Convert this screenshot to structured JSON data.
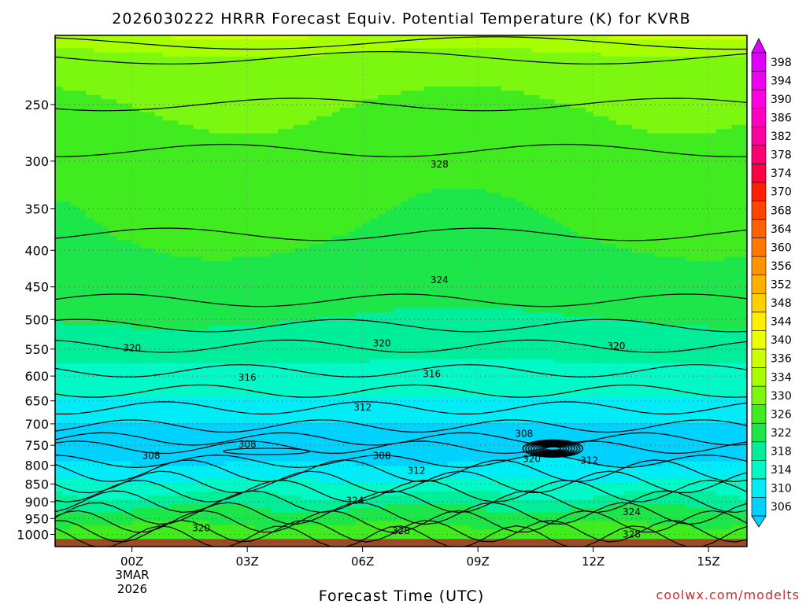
{
  "chart_data": {
    "type": "heatmap",
    "title": "2026030222 HRRR Forecast Equiv. Potential Temperature (K) for KVRB",
    "xlabel": "Forecast Time (UTC)",
    "ylabel": "",
    "x_ticks": [
      "00Z",
      "03Z",
      "06Z",
      "09Z",
      "12Z",
      "15Z"
    ],
    "x_date_label": [
      "3MAR",
      "2026"
    ],
    "x_range_hours": [
      -2,
      16
    ],
    "y_ticks": [
      250,
      300,
      350,
      400,
      450,
      500,
      550,
      600,
      650,
      700,
      750,
      800,
      850,
      900,
      950,
      1000
    ],
    "y_range_hpa": [
      200,
      1040
    ],
    "y_scale": "log pressure (inverted)",
    "grid": true,
    "colorbar": {
      "levels": [
        306,
        310,
        314,
        318,
        322,
        326,
        330,
        334,
        336,
        340,
        344,
        348,
        352,
        356,
        360,
        364,
        368,
        370,
        374,
        378,
        382,
        386,
        390,
        394,
        398
      ],
      "colors": [
        "#00d2ff",
        "#00ecf6",
        "#00f9c6",
        "#00ee9a",
        "#1ce64a",
        "#40eb20",
        "#7cf710",
        "#a8ff00",
        "#ccff00",
        "#eeff00",
        "#ffee00",
        "#ffd000",
        "#ffb000",
        "#ff9400",
        "#ff7800",
        "#ff6000",
        "#ff4400",
        "#ff2000",
        "#ff0040",
        "#ff0070",
        "#ff00a0",
        "#ff00c0",
        "#ff00e0",
        "#f000f0",
        "#e000ff"
      ]
    },
    "contour_labels": [
      {
        "hour": 0,
        "p": 548,
        "text": "320"
      },
      {
        "hour": 6.5,
        "p": 540,
        "text": "320"
      },
      {
        "hour": 12.6,
        "p": 545,
        "text": "320"
      },
      {
        "hour": 3,
        "p": 603,
        "text": "316"
      },
      {
        "hour": 7.8,
        "p": 596,
        "text": "316"
      },
      {
        "hour": 6,
        "p": 664,
        "text": "312"
      },
      {
        "hour": 3,
        "p": 748,
        "text": "308"
      },
      {
        "hour": 0.5,
        "p": 776,
        "text": "308"
      },
      {
        "hour": 6.5,
        "p": 776,
        "text": "308"
      },
      {
        "hour": 10.2,
        "p": 723,
        "text": "308"
      },
      {
        "hour": 7.4,
        "p": 814,
        "text": "312"
      },
      {
        "hour": 10.4,
        "p": 784,
        "text": "320"
      },
      {
        "hour": 11.9,
        "p": 788,
        "text": "312"
      },
      {
        "hour": 5.8,
        "p": 897,
        "text": "324"
      },
      {
        "hour": 1.8,
        "p": 980,
        "text": "320"
      },
      {
        "hour": 7,
        "p": 988,
        "text": "328"
      },
      {
        "hour": 13,
        "p": 930,
        "text": "324"
      },
      {
        "hour": 13,
        "p": 1000,
        "text": "328"
      },
      {
        "hour": 8,
        "p": 303,
        "text": "328"
      },
      {
        "hour": 8,
        "p": 440,
        "text": "324"
      }
    ]
  },
  "credit": "coolwx.com/modelts"
}
